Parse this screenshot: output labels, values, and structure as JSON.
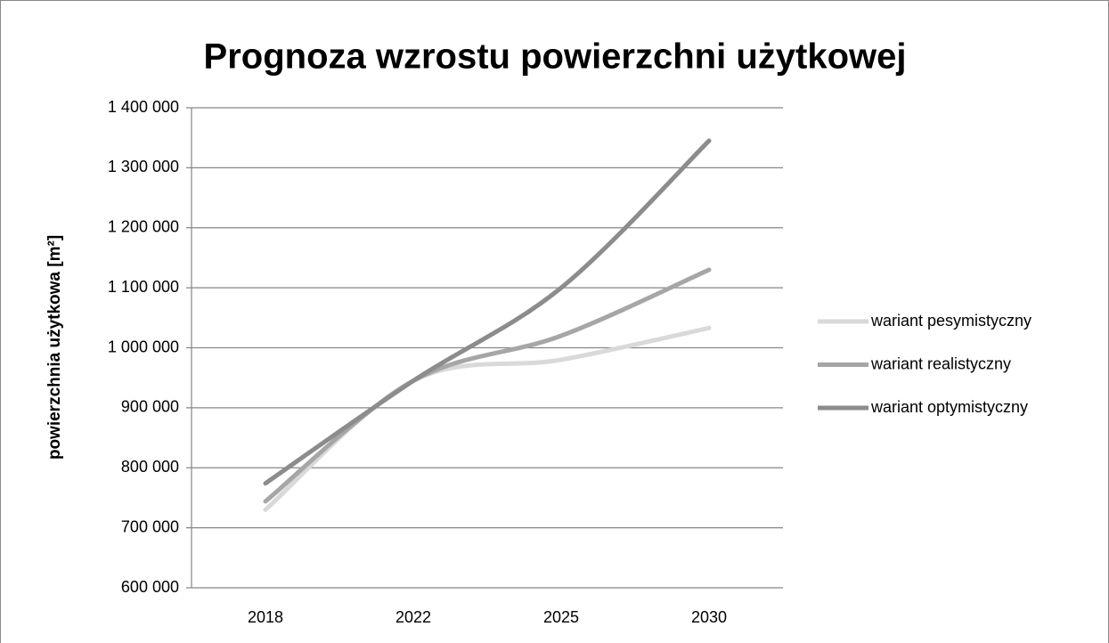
{
  "chart_data": {
    "type": "line",
    "title": "Prognoza wzrostu powierzchni użytkowej",
    "y_label": "powierzchnia użytkowa [m²]",
    "categories": [
      "2018",
      "2022",
      "2025",
      "2030"
    ],
    "series": [
      {
        "name": "wariant pesymistyczny",
        "color": "#d9d9d9",
        "values": [
          730000,
          945000,
          980000,
          1033000
        ]
      },
      {
        "name": "wariant realistyczny",
        "color": "#a6a6a6",
        "values": [
          744000,
          945000,
          1020000,
          1130000
        ]
      },
      {
        "name": "wariant optymistyczny",
        "color": "#8c8c8c",
        "values": [
          774000,
          945000,
          1100000,
          1345000
        ]
      }
    ],
    "ylim": [
      600000,
      1400000
    ],
    "yticks": [
      {
        "value": 600000,
        "label": "600 000"
      },
      {
        "value": 700000,
        "label": "700 000"
      },
      {
        "value": 800000,
        "label": "800 000"
      },
      {
        "value": 900000,
        "label": "900 000"
      },
      {
        "value": 1000000,
        "label": "1 000 000"
      },
      {
        "value": 1100000,
        "label": "1 100 000"
      },
      {
        "value": 1200000,
        "label": "1 200 000"
      },
      {
        "value": 1300000,
        "label": "1 300 000"
      },
      {
        "value": 1400000,
        "label": "1 400 000"
      }
    ],
    "grid": true,
    "smooth": true,
    "legend": "right"
  }
}
